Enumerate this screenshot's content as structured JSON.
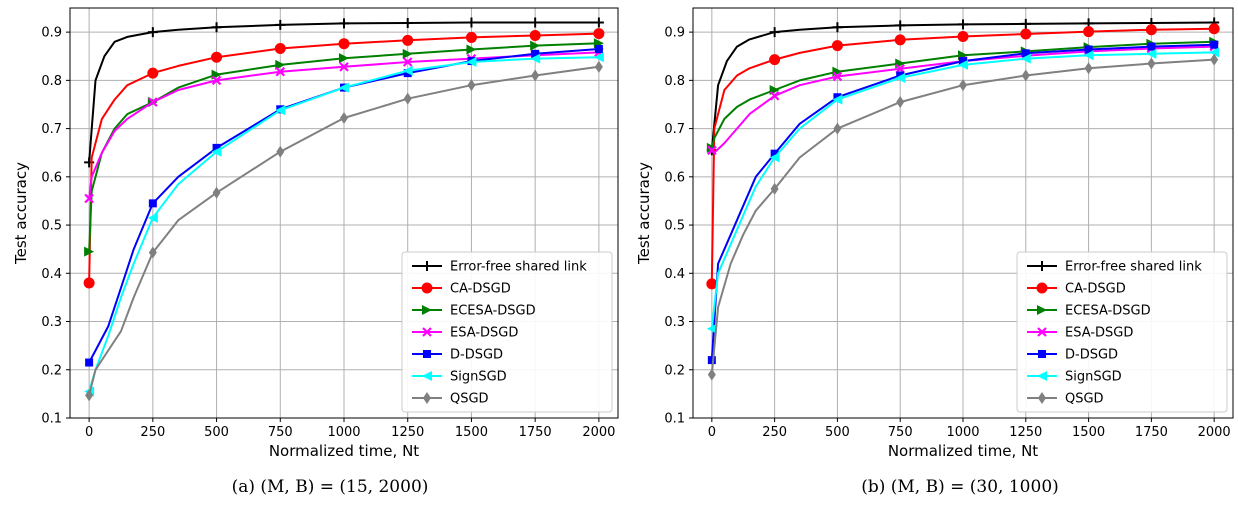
{
  "chart_data": [
    {
      "type": "line",
      "xlabel": "Normalized time, Nt",
      "ylabel": "Test accuracy",
      "caption": "(a) (M, B) = (15, 2000)",
      "xlim": [
        -75,
        2075
      ],
      "ylim": [
        0.1,
        0.95
      ],
      "xticks": [
        0,
        250,
        500,
        750,
        1000,
        1250,
        1500,
        1750,
        2000
      ],
      "yticks": [
        0.1,
        0.2,
        0.3,
        0.4,
        0.5,
        0.6,
        0.7,
        0.8,
        0.9
      ],
      "grid": true,
      "legend_position": "lower-right",
      "series": [
        {
          "name": "Error-free shared link",
          "color": "#000000",
          "marker": "plus",
          "x": [
            0,
            25,
            60,
            100,
            150,
            250,
            350,
            500,
            750,
            1000,
            1250,
            1500,
            1750,
            2000
          ],
          "y": [
            0.63,
            0.8,
            0.85,
            0.88,
            0.89,
            0.9,
            0.905,
            0.91,
            0.915,
            0.918,
            0.919,
            0.92,
            0.92,
            0.92
          ]
        },
        {
          "name": "CA-DSGD",
          "color": "#ff0000",
          "marker": "circle",
          "x": [
            0,
            10,
            50,
            100,
            150,
            250,
            350,
            500,
            750,
            1000,
            1250,
            1500,
            1750,
            2000
          ],
          "y": [
            0.38,
            0.64,
            0.72,
            0.76,
            0.79,
            0.815,
            0.83,
            0.848,
            0.866,
            0.876,
            0.883,
            0.889,
            0.893,
            0.897
          ]
        },
        {
          "name": "ECESA-DSGD",
          "color": "#008000",
          "marker": "triangle-right",
          "x": [
            0,
            10,
            50,
            100,
            150,
            250,
            350,
            500,
            750,
            1000,
            1250,
            1500,
            1750,
            2000
          ],
          "y": [
            0.445,
            0.57,
            0.65,
            0.7,
            0.73,
            0.755,
            0.785,
            0.812,
            0.832,
            0.846,
            0.855,
            0.864,
            0.872,
            0.877
          ]
        },
        {
          "name": "ESA-DSGD",
          "color": "#ff00ff",
          "marker": "x",
          "x": [
            0,
            10,
            50,
            100,
            150,
            250,
            350,
            500,
            750,
            1000,
            1250,
            1500,
            1750,
            2000
          ],
          "y": [
            0.555,
            0.6,
            0.65,
            0.695,
            0.72,
            0.755,
            0.78,
            0.8,
            0.818,
            0.828,
            0.838,
            0.845,
            0.852,
            0.858
          ]
        },
        {
          "name": "D-DSGD",
          "color": "#0000ff",
          "marker": "square",
          "x": [
            0,
            25,
            75,
            125,
            175,
            250,
            350,
            500,
            750,
            1000,
            1250,
            1500,
            1750,
            2000
          ],
          "y": [
            0.215,
            0.24,
            0.29,
            0.37,
            0.45,
            0.545,
            0.6,
            0.66,
            0.74,
            0.785,
            0.815,
            0.84,
            0.855,
            0.865
          ]
        },
        {
          "name": "SignSGD",
          "color": "#00ffff",
          "marker": "triangle-left",
          "x": [
            0,
            25,
            75,
            125,
            175,
            250,
            350,
            500,
            750,
            1000,
            1250,
            1500,
            1750,
            2000
          ],
          "y": [
            0.155,
            0.2,
            0.27,
            0.35,
            0.42,
            0.515,
            0.585,
            0.652,
            0.738,
            0.785,
            0.82,
            0.838,
            0.845,
            0.848
          ]
        },
        {
          "name": "QSGD",
          "color": "#808080",
          "marker": "diamond",
          "x": [
            0,
            25,
            75,
            125,
            175,
            250,
            350,
            500,
            750,
            1000,
            1250,
            1500,
            1750,
            2000
          ],
          "y": [
            0.147,
            0.2,
            0.24,
            0.28,
            0.35,
            0.443,
            0.51,
            0.567,
            0.652,
            0.722,
            0.762,
            0.79,
            0.81,
            0.828
          ]
        }
      ]
    },
    {
      "type": "line",
      "xlabel": "Normalized time, Nt",
      "ylabel": "Test accuracy",
      "caption": "(b) (M, B) = (30, 1000)",
      "xlim": [
        -75,
        2075
      ],
      "ylim": [
        0.1,
        0.95
      ],
      "xticks": [
        0,
        250,
        500,
        750,
        1000,
        1250,
        1500,
        1750,
        2000
      ],
      "yticks": [
        0.1,
        0.2,
        0.3,
        0.4,
        0.5,
        0.6,
        0.7,
        0.8,
        0.9
      ],
      "grid": true,
      "legend_position": "lower-right",
      "series": [
        {
          "name": "Error-free shared link",
          "color": "#000000",
          "marker": "plus",
          "x": [
            0,
            25,
            60,
            100,
            150,
            250,
            350,
            500,
            750,
            1000,
            1250,
            1500,
            1750,
            2000
          ],
          "y": [
            0.655,
            0.79,
            0.84,
            0.87,
            0.885,
            0.9,
            0.905,
            0.91,
            0.914,
            0.916,
            0.917,
            0.918,
            0.919,
            0.92
          ]
        },
        {
          "name": "CA-DSGD",
          "color": "#ff0000",
          "marker": "circle",
          "x": [
            0,
            10,
            50,
            100,
            150,
            250,
            350,
            500,
            750,
            1000,
            1250,
            1500,
            1750,
            2000
          ],
          "y": [
            0.378,
            0.7,
            0.78,
            0.81,
            0.825,
            0.843,
            0.857,
            0.872,
            0.884,
            0.891,
            0.896,
            0.901,
            0.905,
            0.907
          ]
        },
        {
          "name": "ECESA-DSGD",
          "color": "#008000",
          "marker": "triangle-right",
          "x": [
            0,
            10,
            50,
            100,
            150,
            250,
            350,
            500,
            750,
            1000,
            1250,
            1500,
            1750,
            2000
          ],
          "y": [
            0.66,
            0.68,
            0.72,
            0.745,
            0.76,
            0.78,
            0.8,
            0.818,
            0.835,
            0.852,
            0.86,
            0.869,
            0.876,
            0.88
          ]
        },
        {
          "name": "ESA-DSGD",
          "color": "#ff00ff",
          "marker": "x",
          "x": [
            0,
            10,
            50,
            100,
            150,
            250,
            350,
            500,
            750,
            1000,
            1250,
            1500,
            1750,
            2000
          ],
          "y": [
            0.655,
            0.65,
            0.67,
            0.7,
            0.73,
            0.768,
            0.79,
            0.808,
            0.824,
            0.84,
            0.851,
            0.86,
            0.866,
            0.87
          ]
        },
        {
          "name": "D-DSGD",
          "color": "#0000ff",
          "marker": "square",
          "x": [
            0,
            25,
            75,
            125,
            175,
            250,
            350,
            500,
            750,
            1000,
            1250,
            1500,
            1750,
            2000
          ],
          "y": [
            0.22,
            0.42,
            0.48,
            0.54,
            0.6,
            0.648,
            0.71,
            0.765,
            0.81,
            0.84,
            0.856,
            0.864,
            0.87,
            0.874
          ]
        },
        {
          "name": "SignSGD",
          "color": "#00ffff",
          "marker": "triangle-left",
          "x": [
            0,
            25,
            75,
            125,
            175,
            250,
            350,
            500,
            750,
            1000,
            1250,
            1500,
            1750,
            2000
          ],
          "y": [
            0.285,
            0.4,
            0.46,
            0.52,
            0.58,
            0.64,
            0.7,
            0.76,
            0.805,
            0.832,
            0.845,
            0.852,
            0.855,
            0.858
          ]
        },
        {
          "name": "QSGD",
          "color": "#808080",
          "marker": "diamond",
          "x": [
            0,
            25,
            75,
            125,
            175,
            250,
            350,
            500,
            750,
            1000,
            1250,
            1500,
            1750,
            2000
          ],
          "y": [
            0.19,
            0.33,
            0.42,
            0.48,
            0.53,
            0.575,
            0.64,
            0.7,
            0.755,
            0.79,
            0.81,
            0.825,
            0.835,
            0.843
          ]
        }
      ]
    }
  ]
}
